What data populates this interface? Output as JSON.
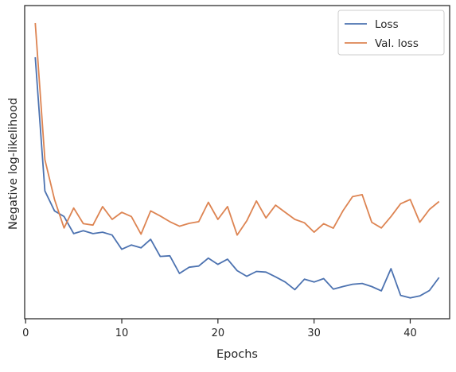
{
  "chart_data": {
    "type": "line",
    "title": "",
    "xlabel": "Epochs",
    "ylabel": "Negative log-likelihood",
    "xlim": [
      -0.1,
      44.1
    ],
    "ylim": [
      0,
      100
    ],
    "x_ticks": [
      0,
      10,
      20,
      30,
      40
    ],
    "x_tick_labels": [
      "0",
      "10",
      "20",
      "30",
      "40"
    ],
    "y_ticks_labeled": false,
    "grid": false,
    "legend_position": "top-right",
    "x": [
      1,
      2,
      3,
      4,
      5,
      6,
      7,
      8,
      9,
      10,
      11,
      12,
      13,
      14,
      15,
      16,
      17,
      18,
      19,
      20,
      21,
      22,
      23,
      24,
      25,
      26,
      27,
      28,
      29,
      30,
      31,
      32,
      33,
      34,
      35,
      36,
      37,
      38,
      39,
      40,
      41,
      42,
      43
    ],
    "series": [
      {
        "name": "Loss",
        "color": "#4c72b0",
        "values": [
          88.0,
          41.0,
          34.0,
          32.0,
          26.0,
          27.0,
          26.0,
          26.5,
          25.5,
          20.5,
          22.0,
          21.0,
          24.0,
          18.0,
          18.2,
          12.0,
          14.2,
          14.6,
          17.4,
          15.2,
          17.0,
          13.0,
          11.0,
          12.7,
          12.5,
          10.8,
          9.0,
          6.3,
          10.0,
          9.0,
          10.2,
          6.5,
          7.4,
          8.2,
          8.5,
          7.4,
          5.9,
          13.7,
          4.3,
          3.4,
          4.1,
          6.0,
          10.6
        ]
      },
      {
        "name": "Val. loss",
        "color": "#dd8452",
        "values": [
          100.0,
          52.0,
          38.0,
          28.0,
          35.0,
          29.5,
          29.0,
          35.5,
          31.0,
          33.5,
          32.0,
          25.8,
          34.0,
          32.2,
          30.2,
          28.6,
          29.6,
          30.2,
          37.0,
          31.0,
          35.5,
          25.5,
          30.5,
          37.5,
          31.5,
          36.0,
          33.5,
          31.0,
          29.8,
          26.5,
          29.5,
          27.9,
          34.0,
          39.0,
          39.7,
          30.0,
          28.0,
          32.0,
          36.5,
          38.0,
          30.0,
          34.5,
          37.3
        ]
      }
    ]
  }
}
